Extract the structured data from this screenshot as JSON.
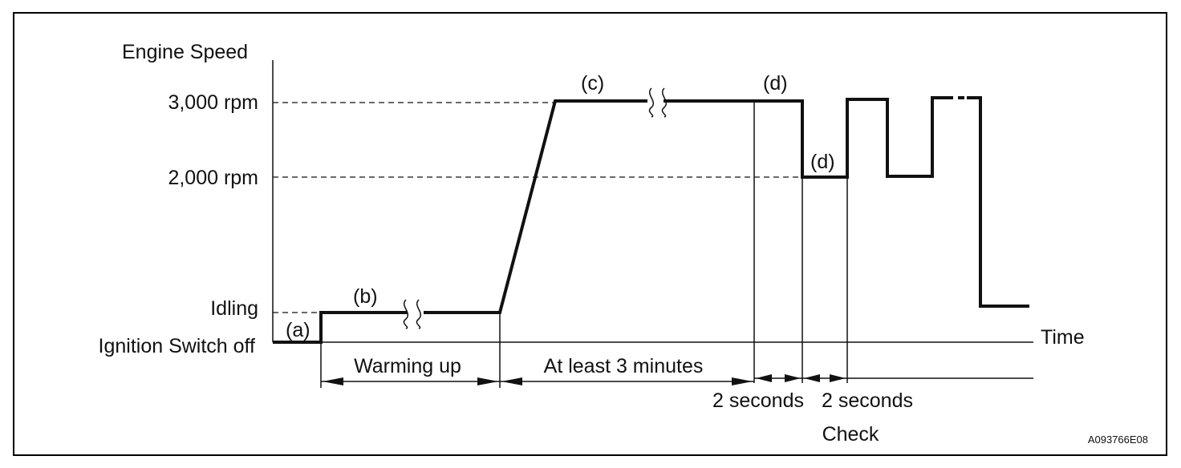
{
  "figure_id": "A093766E08",
  "y_axis": {
    "title": "Engine Speed",
    "levels": [
      "3,000 rpm",
      "2,000 rpm",
      "Idling",
      "Ignition Switch off"
    ]
  },
  "x_axis": {
    "title": "Time"
  },
  "markers": {
    "a": "(a)",
    "b": "(b)",
    "c": "(c)",
    "d1": "(d)",
    "d2": "(d)"
  },
  "intervals": {
    "warming_up": "Warming up",
    "at_least_3_min": "At least 3 minutes",
    "two_sec_1": "2 seconds",
    "two_sec_2": "2 seconds",
    "check": "Check"
  },
  "colors": {
    "ink": "#111111",
    "background": "#ffffff",
    "frame": "#000000"
  }
}
